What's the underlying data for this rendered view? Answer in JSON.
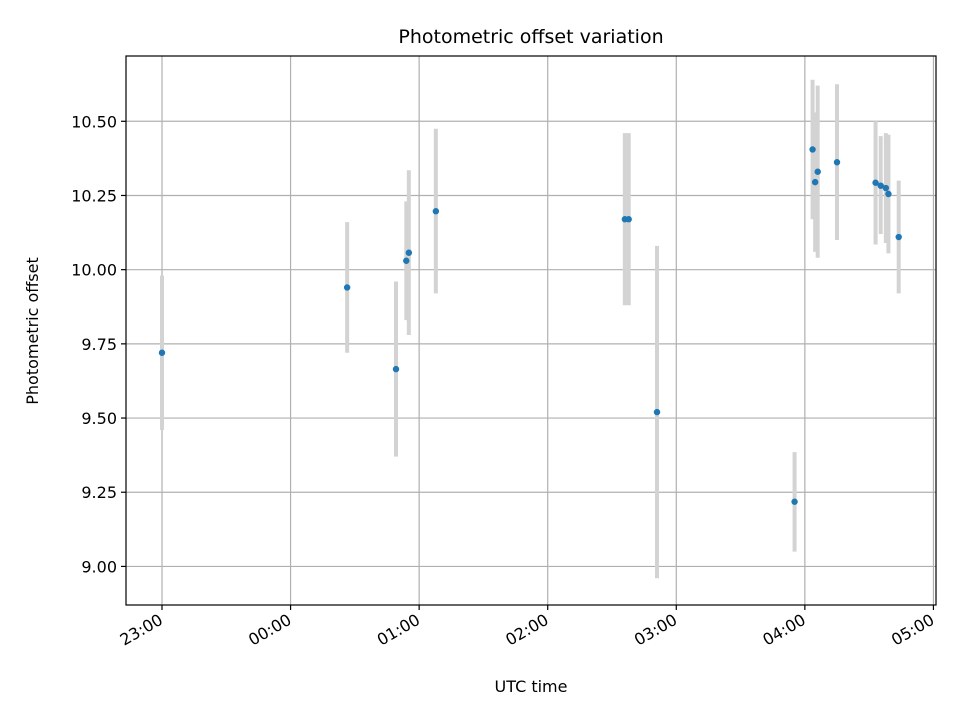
{
  "chart_data": {
    "type": "scatter",
    "title": "Photometric offset variation",
    "xlabel": "UTC time",
    "ylabel": "Photometric offset",
    "x_unit": "UTC time of day, hours (times after midnight continue past 24)",
    "xlim": [
      22.72,
      29.02
    ],
    "ylim": [
      8.87,
      10.72
    ],
    "x_ticks": [
      {
        "value": 23,
        "label": "23:00"
      },
      {
        "value": 24,
        "label": "00:00"
      },
      {
        "value": 25,
        "label": "01:00"
      },
      {
        "value": 26,
        "label": "02:00"
      },
      {
        "value": 27,
        "label": "03:00"
      },
      {
        "value": 28,
        "label": "04:00"
      },
      {
        "value": 29,
        "label": "05:00"
      }
    ],
    "y_ticks": [
      {
        "value": 9.0,
        "label": "9.00"
      },
      {
        "value": 9.25,
        "label": "9.25"
      },
      {
        "value": 9.5,
        "label": "9.50"
      },
      {
        "value": 9.75,
        "label": "9.75"
      },
      {
        "value": 10.0,
        "label": "10.00"
      },
      {
        "value": 10.25,
        "label": "10.25"
      },
      {
        "value": 10.5,
        "label": "10.50"
      }
    ],
    "grid": true,
    "marker_color": "#1f77b4",
    "errorbar_color": "#d3d3d3",
    "points": [
      {
        "x": 23.0,
        "y": 9.72,
        "ylow": 9.46,
        "yhigh": 9.98
      },
      {
        "x": 24.44,
        "y": 9.94,
        "ylow": 9.72,
        "yhigh": 10.16
      },
      {
        "x": 24.82,
        "y": 9.665,
        "ylow": 9.37,
        "yhigh": 9.96
      },
      {
        "x": 24.9,
        "y": 10.03,
        "ylow": 9.83,
        "yhigh": 10.23
      },
      {
        "x": 24.92,
        "y": 10.057,
        "ylow": 9.78,
        "yhigh": 10.335
      },
      {
        "x": 25.13,
        "y": 10.197,
        "ylow": 9.92,
        "yhigh": 10.475
      },
      {
        "x": 26.6,
        "y": 10.17,
        "ylow": 9.88,
        "yhigh": 10.46
      },
      {
        "x": 26.63,
        "y": 10.17,
        "ylow": 9.88,
        "yhigh": 10.46
      },
      {
        "x": 26.85,
        "y": 9.52,
        "ylow": 8.96,
        "yhigh": 10.08
      },
      {
        "x": 27.92,
        "y": 9.218,
        "ylow": 9.05,
        "yhigh": 9.385
      },
      {
        "x": 28.06,
        "y": 10.405,
        "ylow": 10.17,
        "yhigh": 10.64
      },
      {
        "x": 28.08,
        "y": 10.295,
        "ylow": 10.06,
        "yhigh": 10.53
      },
      {
        "x": 28.1,
        "y": 10.33,
        "ylow": 10.04,
        "yhigh": 10.62
      },
      {
        "x": 28.25,
        "y": 10.362,
        "ylow": 10.1,
        "yhigh": 10.625
      },
      {
        "x": 28.55,
        "y": 10.293,
        "ylow": 10.085,
        "yhigh": 10.5
      },
      {
        "x": 28.59,
        "y": 10.283,
        "ylow": 10.12,
        "yhigh": 10.45
      },
      {
        "x": 28.63,
        "y": 10.275,
        "ylow": 10.09,
        "yhigh": 10.46
      },
      {
        "x": 28.65,
        "y": 10.255,
        "ylow": 10.055,
        "yhigh": 10.455
      },
      {
        "x": 28.73,
        "y": 10.11,
        "ylow": 9.92,
        "yhigh": 10.3
      }
    ]
  }
}
